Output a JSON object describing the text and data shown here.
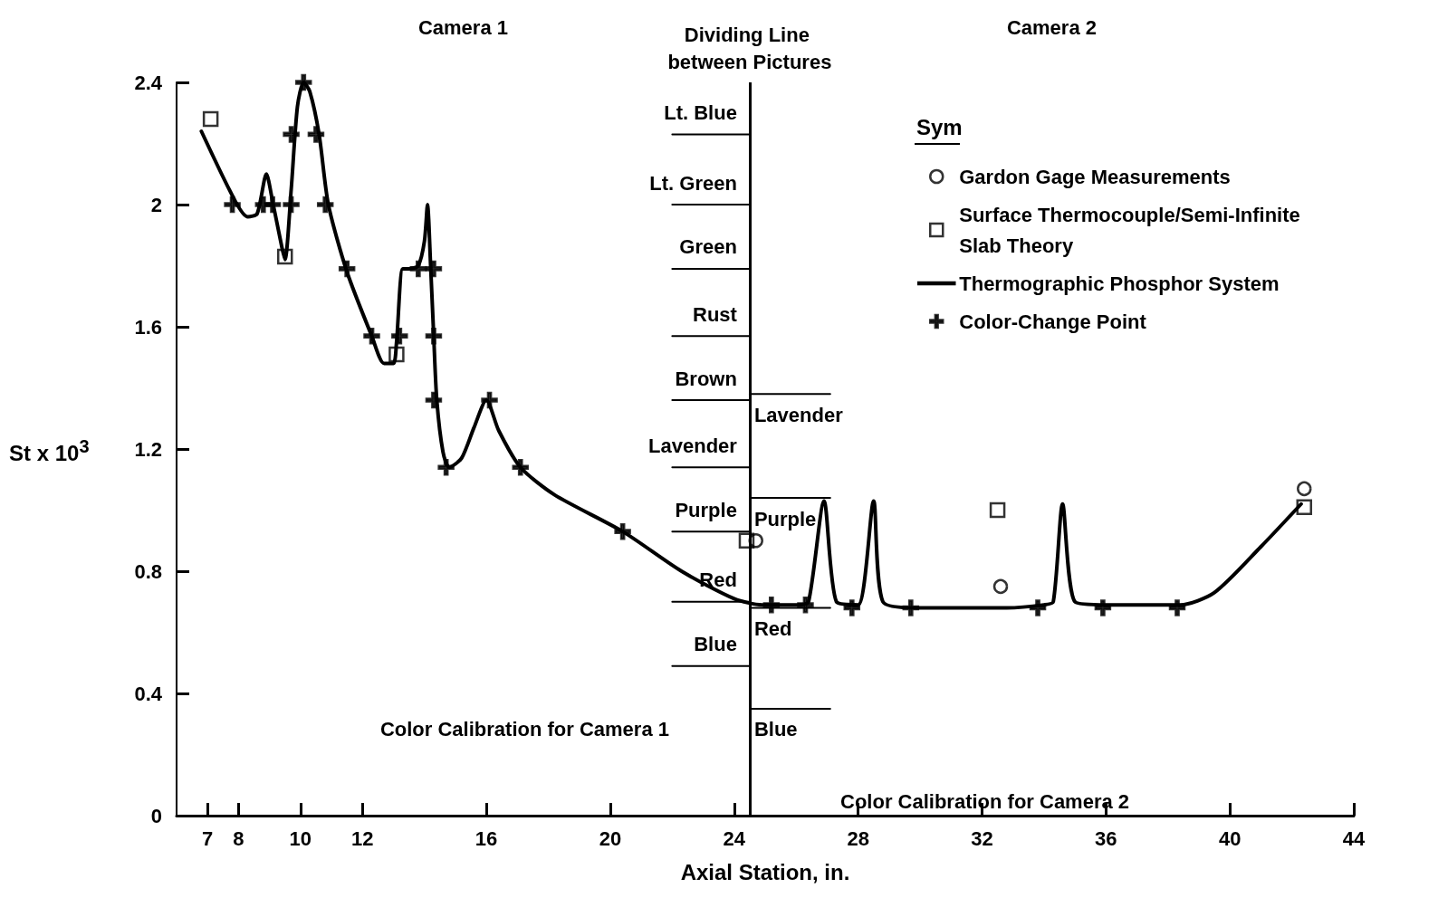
{
  "chart_data": {
    "type": "line",
    "xlabel": "Axial Station, in.",
    "ylabel": "St x 10$^{3}$",
    "xlim": [
      6,
      44
    ],
    "xticks": [
      7,
      8,
      10,
      12,
      16,
      20,
      24,
      28,
      32,
      36,
      40,
      44
    ],
    "ylim": [
      0,
      2.4
    ],
    "yticks": [
      0,
      0.4,
      0.8,
      1.2,
      1.6,
      2.0,
      2.4
    ],
    "legend": "top right",
    "legend_title": "Sym",
    "series": [
      {
        "name": "Gardon Gage Measurements",
        "type": "scatter",
        "marker": "circle",
        "color": "#000000",
        "x": [
          24.7,
          32.6,
          42.4
        ],
        "values": [
          0.9,
          0.75,
          1.07
        ]
      },
      {
        "name": "Surface Thermocouple/Semi-Infinite Slab Theory",
        "type": "scatter",
        "marker": "square",
        "color": "#000000",
        "x": [
          7.1,
          9.5,
          13.1,
          24.4,
          32.5,
          42.4
        ],
        "values": [
          2.28,
          1.83,
          1.51,
          0.9,
          1.0,
          1.01
        ]
      },
      {
        "name": "Thermographic Phosphor System",
        "marker": "none",
        "color": "#000000",
        "x": [
          6.8,
          7.9,
          8.3,
          8.6,
          8.9,
          9.1,
          9.4,
          9.5,
          9.7,
          9.9,
          10.1,
          10.3,
          10.6,
          10.9,
          11.5,
          12.3,
          12.7,
          13.0,
          13.1,
          13.3,
          13.5,
          13.8,
          14.0,
          14.1,
          14.2,
          14.3,
          14.4,
          14.6,
          14.8,
          15.2,
          15.6,
          16.0,
          16.4,
          17.1,
          18.2,
          20.4,
          22.3,
          24.0,
          24.9,
          26.1,
          26.4,
          26.9,
          27.3,
          28.0,
          28.5,
          28.8,
          29.9,
          32.8,
          34.0,
          34.3,
          34.6,
          35.0,
          36.0,
          38.4,
          39.5,
          41.0,
          42.3
        ],
        "values": [
          2.24,
          2.01,
          1.96,
          1.97,
          2.1,
          2.01,
          1.86,
          1.82,
          2.05,
          2.32,
          2.4,
          2.37,
          2.23,
          2.0,
          1.78,
          1.57,
          1.48,
          1.48,
          1.55,
          1.79,
          1.79,
          1.8,
          1.88,
          2.0,
          1.8,
          1.57,
          1.36,
          1.19,
          1.14,
          1.17,
          1.27,
          1.36,
          1.26,
          1.14,
          1.05,
          0.93,
          0.8,
          0.71,
          0.69,
          0.69,
          0.7,
          1.03,
          0.7,
          0.69,
          1.03,
          0.7,
          0.68,
          0.68,
          0.69,
          0.7,
          1.02,
          0.7,
          0.69,
          0.69,
          0.73,
          0.88,
          1.02
        ]
      },
      {
        "name": "Color-Change Point",
        "type": "scatter",
        "marker": "cross",
        "color": "#000000",
        "x": [
          7.8,
          8.8,
          9.1,
          9.7,
          9.7,
          10.1,
          10.5,
          10.8,
          11.5,
          12.3,
          13.2,
          13.8,
          14.3,
          14.3,
          14.3,
          14.7,
          16.1,
          17.1,
          20.4,
          25.2,
          26.3,
          27.8,
          29.7,
          33.8,
          35.9,
          38.3
        ],
        "values": [
          2.0,
          2.0,
          2.0,
          2.0,
          2.23,
          2.4,
          2.23,
          2.0,
          1.79,
          1.57,
          1.57,
          1.79,
          1.79,
          1.57,
          1.36,
          1.14,
          1.36,
          1.14,
          0.93,
          0.69,
          0.69,
          0.68,
          0.68,
          0.68,
          0.68,
          0.68
        ]
      },
      {
        "name": "Lt. Blue",
        "marker": "none",
        "color": "#000000",
        "x": [
          22,
          24.5
        ],
        "values": [
          2.23,
          2.23
        ]
      },
      {
        "name": "Lt. Green",
        "marker": "none",
        "color": "#000000",
        "x": [
          22,
          24.5
        ],
        "values": [
          2.0,
          2.0
        ]
      },
      {
        "name": "Green",
        "marker": "none",
        "color": "#000000",
        "x": [
          22,
          24.5
        ],
        "values": [
          1.79,
          1.79
        ]
      },
      {
        "name": "Rust",
        "marker": "none",
        "color": "#000000",
        "x": [
          22,
          24.5
        ],
        "values": [
          1.57,
          1.57
        ]
      },
      {
        "name": "Brown",
        "marker": "none",
        "color": "#000000",
        "x": [
          22,
          24.5
        ],
        "values": [
          1.36,
          1.36
        ]
      },
      {
        "name": "Lavender",
        "marker": "none",
        "color": "#000000",
        "x": [
          22,
          24.5
        ],
        "values": [
          1.14,
          1.14
        ]
      },
      {
        "name": "Purple",
        "marker": "none",
        "color": "#000000",
        "x": [
          22,
          24.5
        ],
        "values": [
          0.93,
          0.93
        ]
      },
      {
        "name": "Red",
        "marker": "none",
        "color": "#000000",
        "x": [
          22,
          24.5
        ],
        "values": [
          0.7,
          0.7
        ]
      },
      {
        "name": "Blue",
        "marker": "none",
        "color": "#000000",
        "x": [
          22,
          24.5
        ],
        "values": [
          0.49,
          0.49
        ]
      },
      {
        "name": "Lavender",
        "marker": "none",
        "color": "#000000",
        "x": [
          24.5,
          27.1
        ],
        "values": [
          1.38,
          1.38
        ]
      },
      {
        "name": "Purple",
        "marker": "none",
        "color": "#000000",
        "x": [
          24.5,
          27.1
        ],
        "values": [
          1.04,
          1.04
        ]
      },
      {
        "name": "Red",
        "marker": "none",
        "color": "#000000",
        "x": [
          24.5,
          27.1
        ],
        "values": [
          0.68,
          0.68
        ]
      },
      {
        "name": "Blue",
        "marker": "none",
        "color": "#000000",
        "x": [
          24.5,
          27.1
        ],
        "values": [
          0.35,
          0.35
        ]
      }
    ],
    "ref_lines": [
      {
        "axis": "x",
        "value": 24.5,
        "label": "Dividing Line between Pictures"
      }
    ],
    "annotations": [
      "Camera 1",
      "Camera 2",
      "Color Calibration for Camera 1",
      "Color Calibration for Camera 2"
    ]
  }
}
